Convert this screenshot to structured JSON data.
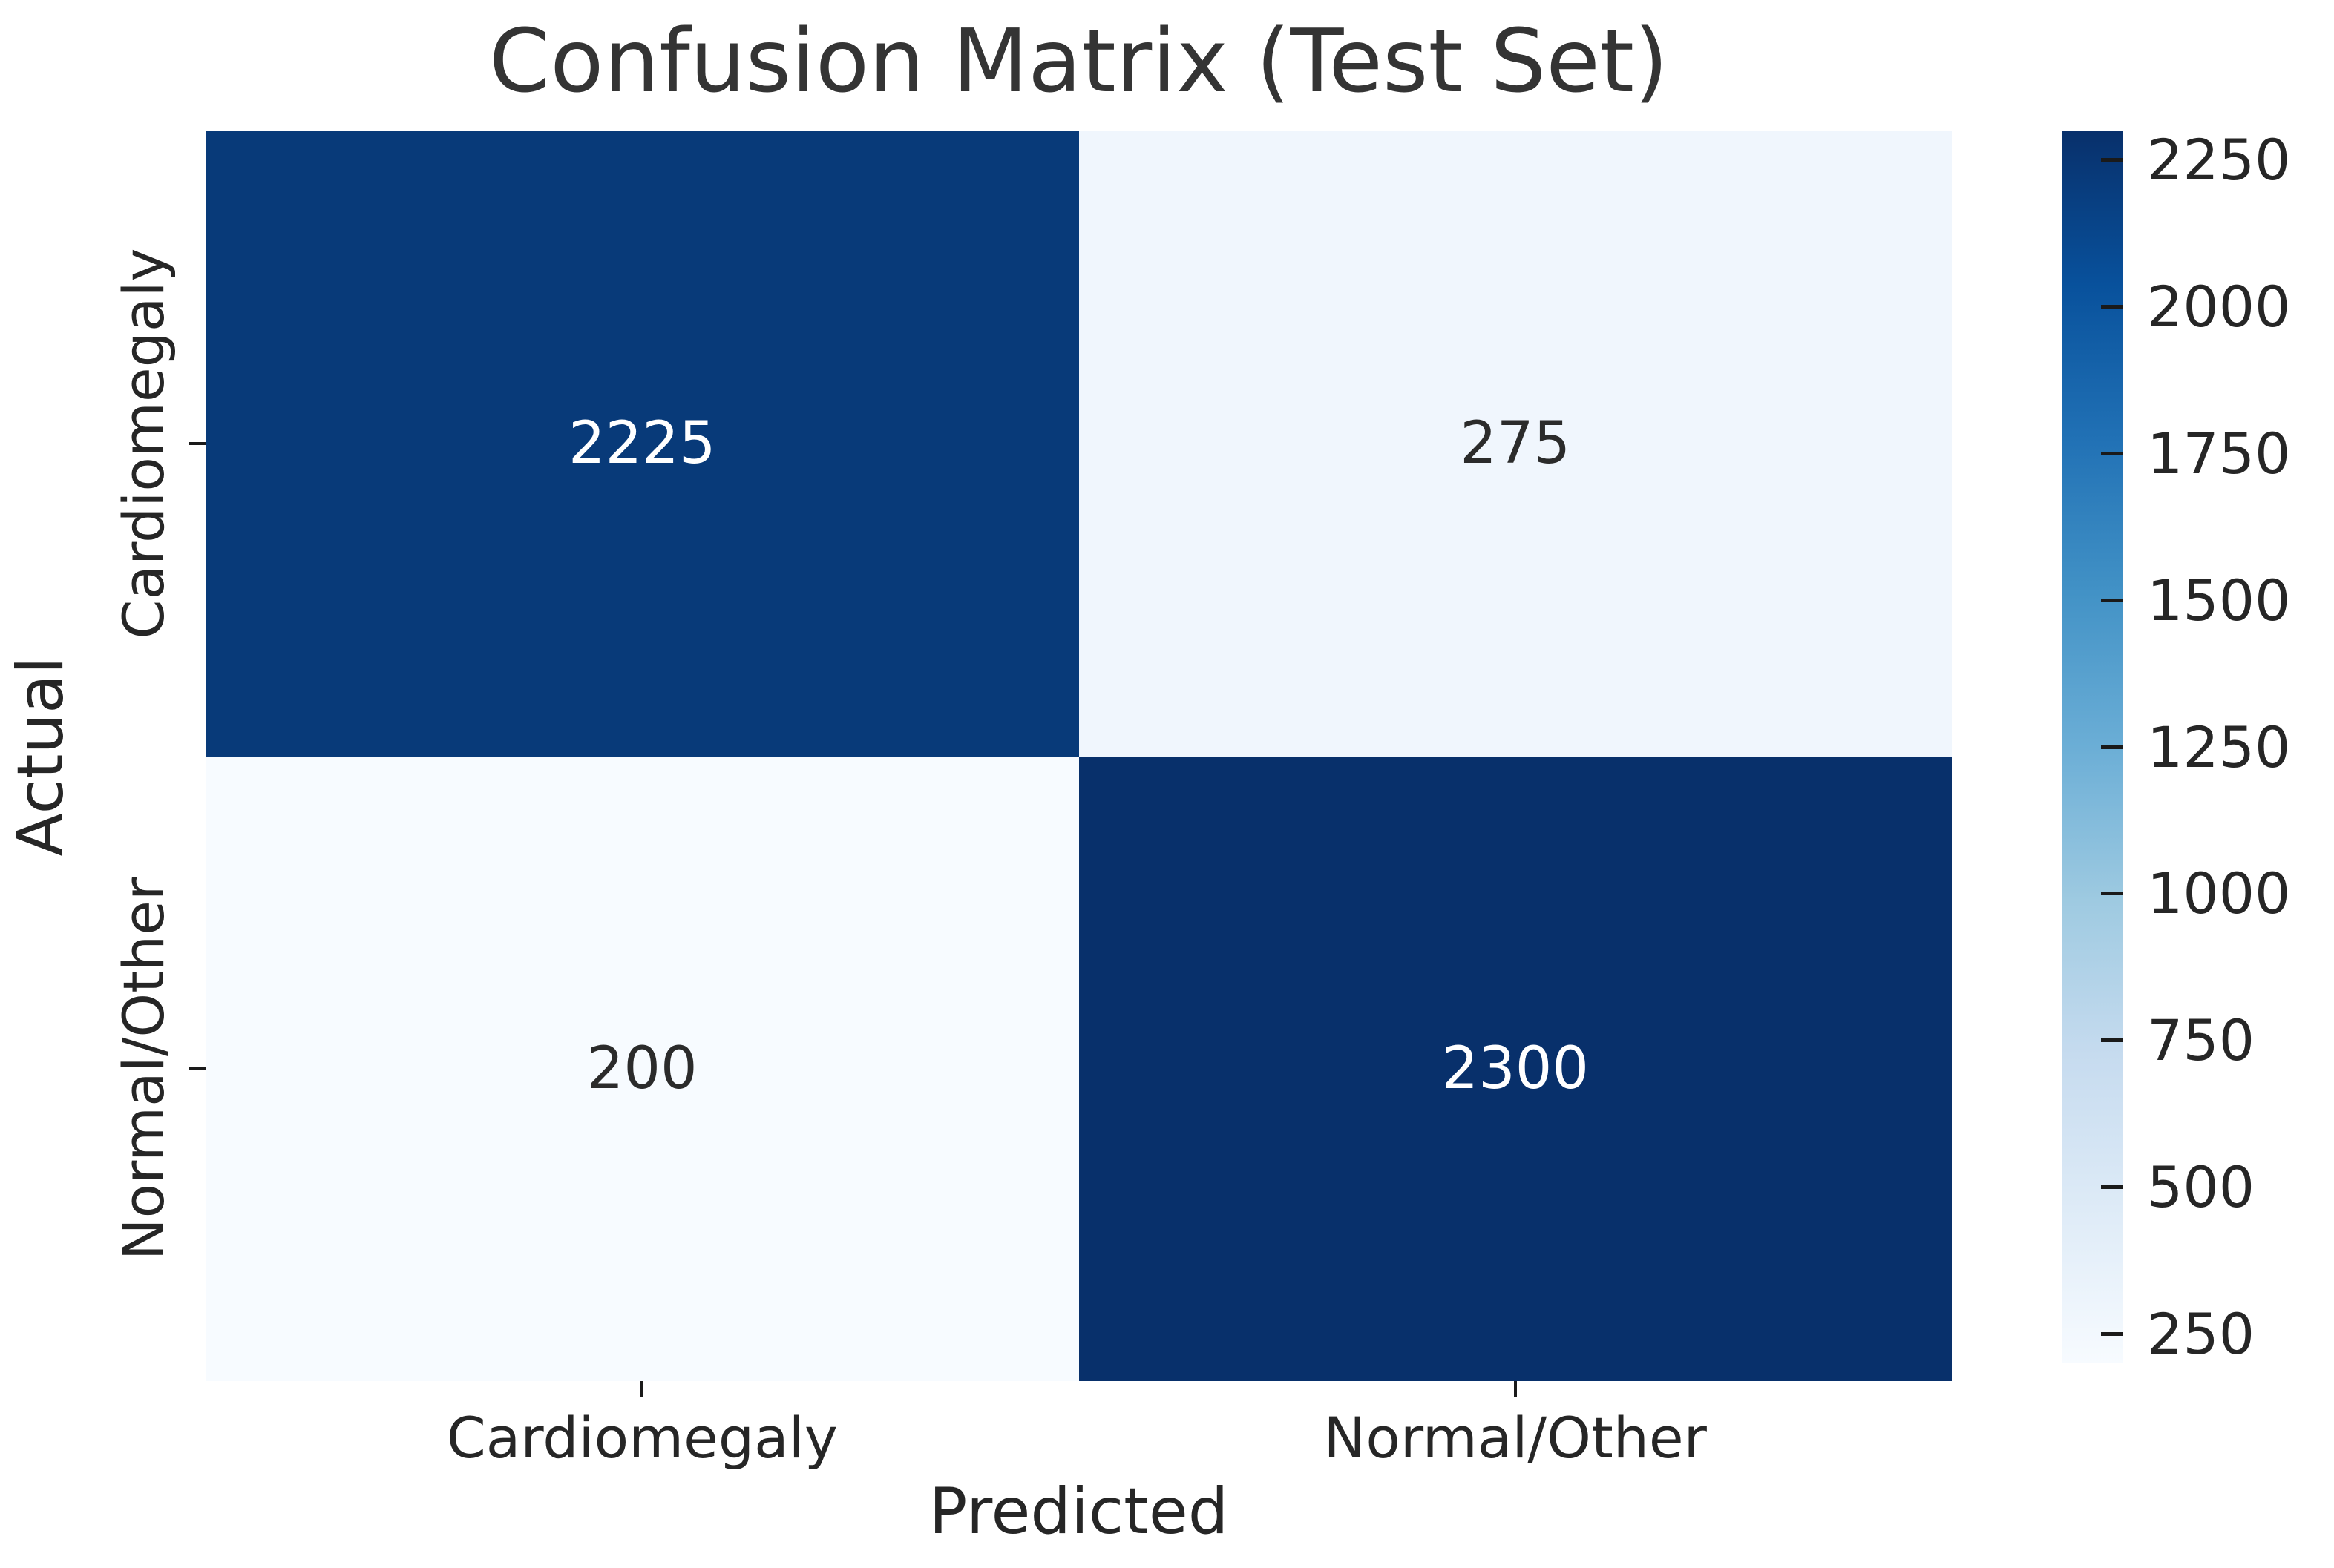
{
  "chart_data": {
    "type": "heatmap",
    "title": "Confusion Matrix (Test Set)",
    "xlabel": "Predicted",
    "ylabel": "Actual",
    "x_categories": [
      "Cardiomegaly",
      "Normal/Other"
    ],
    "y_categories": [
      "Cardiomegaly",
      "Normal/Other"
    ],
    "values": [
      [
        2225,
        275
      ],
      [
        200,
        2300
      ]
    ],
    "vmin": 200,
    "vmax": 2300,
    "colormap": "Blues",
    "cell_colors": [
      [
        "#083a79",
        "#f0f6fd"
      ],
      [
        "#f7fbff",
        "#08306b"
      ]
    ],
    "cell_text_colors": [
      [
        "#ffffff",
        "#2b2b2b"
      ],
      [
        "#2b2b2b",
        "#ffffff"
      ]
    ],
    "colorbar_ticks": [
      250,
      500,
      750,
      1000,
      1250,
      1500,
      1750,
      2000,
      2250
    ],
    "colorbar_gradient": [
      "#f7fbff",
      "#deebf7",
      "#c6dbef",
      "#9ecae1",
      "#6baed6",
      "#4292c6",
      "#2171b5",
      "#08519c",
      "#08306b"
    ],
    "legend_position": "right",
    "grid": false
  }
}
